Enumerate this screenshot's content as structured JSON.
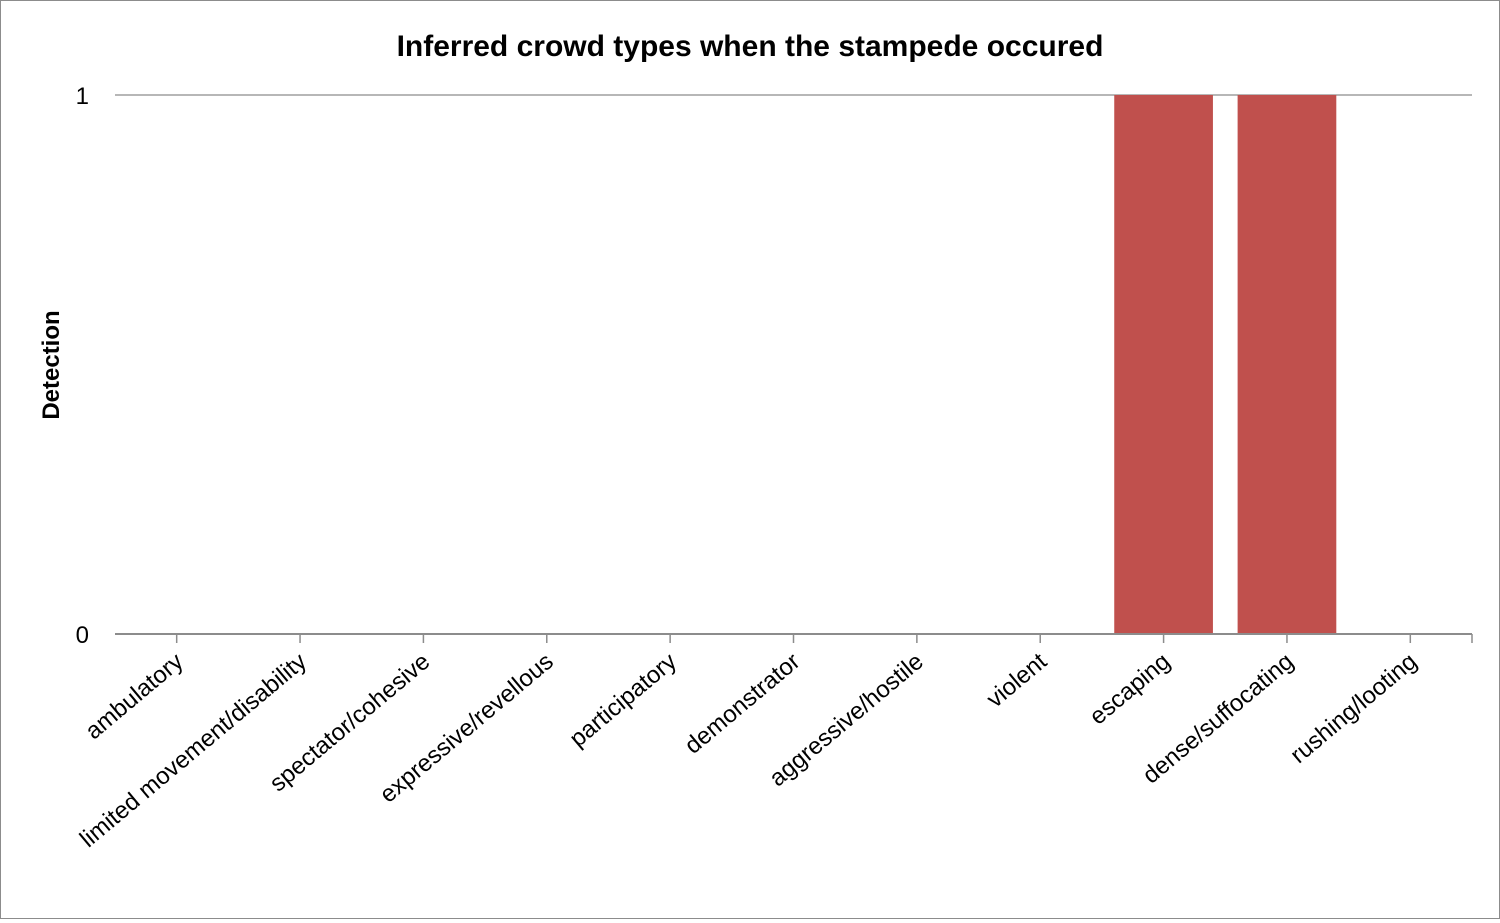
{
  "chart_data": {
    "type": "bar",
    "title": "Inferred crowd types when the stampede occured",
    "xlabel": "",
    "ylabel": "Detection",
    "categories": [
      "ambulatory",
      "limited movement/disability",
      "spectator/cohesive",
      "expressive/revellous",
      "participatory",
      "demonstrator",
      "aggressive/hostile",
      "violent",
      "escaping",
      "dense/suffocating",
      "rushing/looting"
    ],
    "values": [
      0,
      0,
      0,
      0,
      0,
      0,
      0,
      0,
      1,
      1,
      0
    ],
    "ylim": [
      0,
      1
    ],
    "yticks": [
      "0",
      "1"
    ],
    "grid": true,
    "legend": "none",
    "colors": {
      "bar": "#c0504d",
      "axis": "#8c8c8c",
      "grid": "#8c8c8c"
    }
  }
}
